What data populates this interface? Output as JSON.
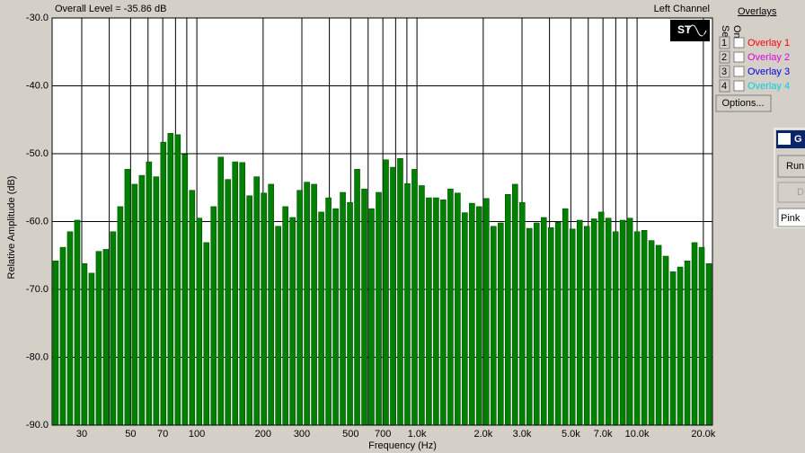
{
  "chart_data": {
    "type": "bar",
    "header_left": "Overall Level = -35.86 dB",
    "header_right": "Left Channel",
    "xlabel": "Frequency (Hz)",
    "ylabel": "Relative Amplitude (dB)",
    "color": "#008000",
    "xscale": "log",
    "xlim": [
      22,
      22000
    ],
    "ylim": [
      -90,
      -30
    ],
    "yticks": [
      {
        "value": -30,
        "label": "-30.0"
      },
      {
        "value": -40,
        "label": "-40.0"
      },
      {
        "value": -50,
        "label": "-50.0"
      },
      {
        "value": -60,
        "label": "-60.0"
      },
      {
        "value": -70,
        "label": "-70.0"
      },
      {
        "value": -80,
        "label": "-80.0"
      },
      {
        "value": -90,
        "label": "-90.0"
      }
    ],
    "xticks": [
      30,
      50,
      70,
      100,
      200,
      300,
      500,
      700,
      {
        "value": 1000,
        "label": "1.0k"
      },
      {
        "value": 2000,
        "label": "2.0k"
      },
      {
        "value": 3000,
        "label": "3.0k"
      },
      {
        "value": 5000,
        "label": "5.0k"
      },
      {
        "value": 7000,
        "label": "7.0k"
      },
      {
        "value": 10000,
        "label": "10.0k"
      },
      {
        "value": 20000,
        "label": "20.0k"
      }
    ],
    "xminor": [
      40,
      60,
      80,
      90,
      400,
      600,
      800,
      900,
      4000,
      6000,
      8000,
      9000
    ],
    "grid": true,
    "values": [
      -65.8,
      -63.8,
      -61.5,
      -59.8,
      -66.2,
      -67.6,
      -64.4,
      -64.1,
      -61.5,
      -57.8,
      -52.3,
      -54.5,
      -53.2,
      -51.2,
      -53.4,
      -48.3,
      -47.0,
      -47.2,
      -50.1,
      -55.4,
      -59.5,
      -63.1,
      -57.8,
      -50.5,
      -53.8,
      -51.2,
      -51.3,
      -56.2,
      -53.4,
      -55.8,
      -54.5,
      -60.7,
      -57.8,
      -59.4,
      -55.4,
      -54.2,
      -54.5,
      -58.6,
      -56.5,
      -58.1,
      -55.7,
      -57.2,
      -52.3,
      -55.2,
      -58.1,
      -55.7,
      -50.9,
      -52.0,
      -50.7,
      -54.4,
      -52.3,
      -54.7,
      -56.5,
      -56.5,
      -56.8,
      -55.2,
      -55.8,
      -58.7,
      -57.3,
      -57.8,
      -56.6,
      -60.7,
      -60.2,
      -56.0,
      -54.5,
      -57.2,
      -61.0,
      -60.2,
      -59.4,
      -60.9,
      -60.1,
      -58.1,
      -61.1,
      -59.8,
      -60.7,
      -59.6,
      -58.6,
      -59.5,
      -61.5,
      -59.8,
      -59.5,
      -61.5,
      -61.3,
      -62.8,
      -63.5,
      -65.1,
      -67.4,
      -66.7,
      -65.8,
      -63.1,
      -63.8,
      -66.2
    ]
  },
  "overlays": {
    "title": "Overlays",
    "set_label": "Set",
    "on_label": "On",
    "options_button": "Options...",
    "items": [
      {
        "number": "1",
        "label": "Overlay 1",
        "color": "#ff0000"
      },
      {
        "number": "2",
        "label": "Overlay 2",
        "color": "#e000e0"
      },
      {
        "number": "3",
        "label": "Overlay 3",
        "color": "#0000e0"
      },
      {
        "number": "4",
        "label": "Overlay 4",
        "color": "#00d0e0"
      }
    ]
  },
  "side_window": {
    "title": "G",
    "run_button": "Run",
    "disabled_button": "D",
    "select": "Pink"
  }
}
